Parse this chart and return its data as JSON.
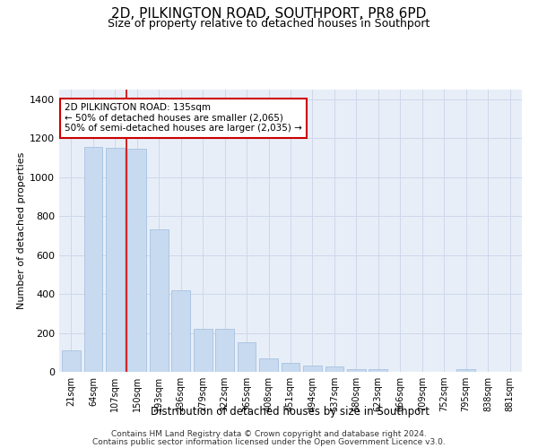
{
  "title": "2D, PILKINGTON ROAD, SOUTHPORT, PR8 6PD",
  "subtitle": "Size of property relative to detached houses in Southport",
  "xlabel": "Distribution of detached houses by size in Southport",
  "ylabel": "Number of detached properties",
  "categories": [
    "21sqm",
    "64sqm",
    "107sqm",
    "150sqm",
    "193sqm",
    "236sqm",
    "279sqm",
    "322sqm",
    "365sqm",
    "408sqm",
    "451sqm",
    "494sqm",
    "537sqm",
    "580sqm",
    "623sqm",
    "666sqm",
    "709sqm",
    "752sqm",
    "795sqm",
    "838sqm",
    "881sqm"
  ],
  "values": [
    110,
    1155,
    1150,
    1145,
    730,
    420,
    220,
    220,
    150,
    70,
    48,
    30,
    28,
    15,
    15,
    0,
    0,
    0,
    12,
    0,
    0
  ],
  "bar_color": "#c8daf0",
  "bar_edge_color": "#9bbcdb",
  "grid_color": "#cdd8ea",
  "background_color": "#e8eef8",
  "red_line_x": 3.0,
  "annotation_text": "2D PILKINGTON ROAD: 135sqm\n← 50% of detached houses are smaller (2,065)\n50% of semi-detached houses are larger (2,035) →",
  "annotation_box_color": "#ffffff",
  "annotation_border_color": "#cc0000",
  "ylim": [
    0,
    1450
  ],
  "yticks": [
    0,
    200,
    400,
    600,
    800,
    1000,
    1200,
    1400
  ],
  "footer_line1": "Contains HM Land Registry data © Crown copyright and database right 2024.",
  "footer_line2": "Contains public sector information licensed under the Open Government Licence v3.0."
}
